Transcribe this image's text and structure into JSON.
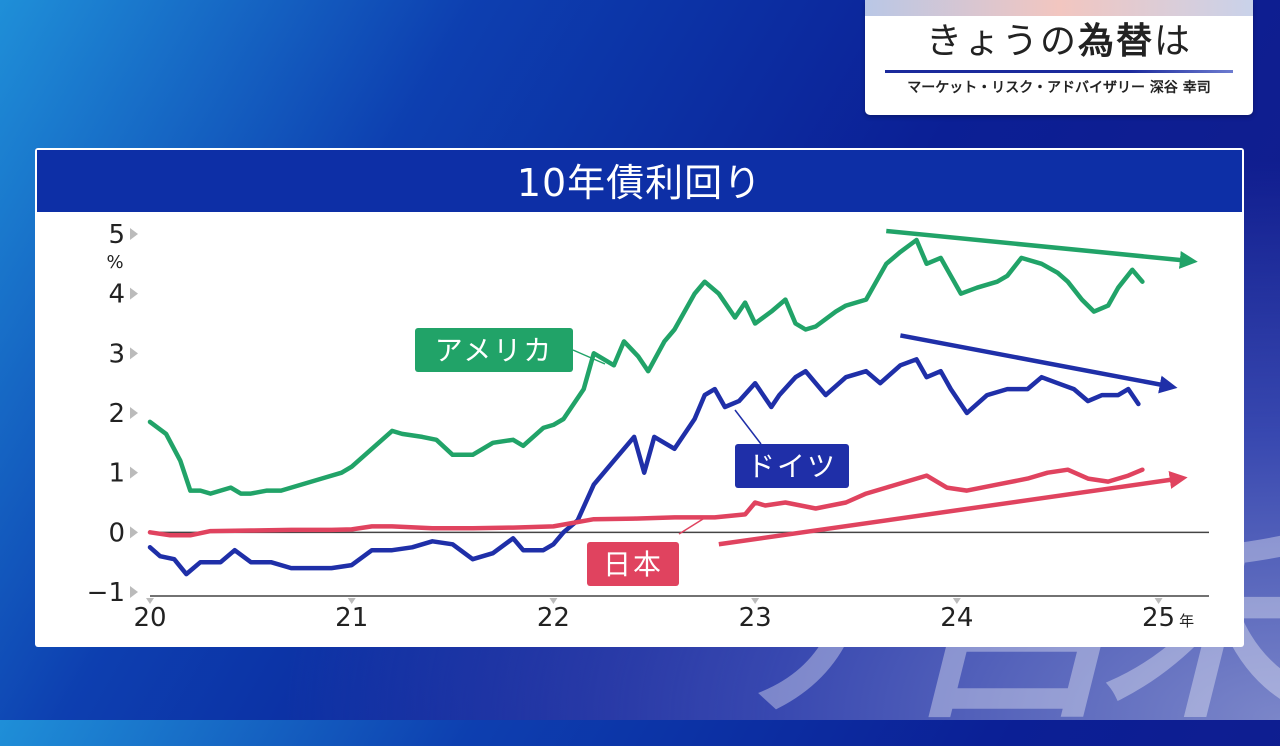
{
  "decor": {
    "background_text": "ナ呂禾"
  },
  "title_card": {
    "main_pre": "きょうの",
    "main_bold": "為替",
    "main_post": "は",
    "subtitle": "マーケット・リスク・アドバイザリー 深谷 幸司"
  },
  "chart_data": {
    "type": "line",
    "title": "10年債利回り",
    "ylabel": "%",
    "xlabel": "年",
    "ylim": [
      -1,
      5
    ],
    "xlim": [
      2020.0,
      2025.25
    ],
    "y_ticks": [
      "5",
      "4",
      "3",
      "2",
      "1",
      "0",
      "−1"
    ],
    "y_tick_values": [
      5,
      4,
      3,
      2,
      1,
      0,
      -1
    ],
    "x_ticks": [
      "20",
      "21",
      "22",
      "23",
      "24",
      "25"
    ],
    "x_tick_values": [
      2020,
      2021,
      2022,
      2023,
      2024,
      2025
    ],
    "grid": false,
    "zero_line": true,
    "series": [
      {
        "name": "アメリカ",
        "color": "#21a368",
        "x": [
          2020.0,
          2020.08,
          2020.15,
          2020.2,
          2020.25,
          2020.3,
          2020.4,
          2020.45,
          2020.5,
          2020.58,
          2020.65,
          2020.75,
          2020.85,
          2020.95,
          2021.0,
          2021.1,
          2021.2,
          2021.25,
          2021.35,
          2021.42,
          2021.5,
          2021.55,
          2021.6,
          2021.7,
          2021.8,
          2021.85,
          2021.95,
          2022.0,
          2022.05,
          2022.15,
          2022.2,
          2022.3,
          2022.35,
          2022.42,
          2022.47,
          2022.55,
          2022.6,
          2022.7,
          2022.75,
          2022.82,
          2022.9,
          2022.95,
          2023.0,
          2023.08,
          2023.15,
          2023.2,
          2023.25,
          2023.3,
          2023.4,
          2023.45,
          2023.55,
          2023.6,
          2023.65,
          2023.72,
          2023.8,
          2023.85,
          2023.92,
          2023.97,
          2024.02,
          2024.1,
          2024.2,
          2024.25,
          2024.32,
          2024.42,
          2024.5,
          2024.55,
          2024.62,
          2024.68,
          2024.75,
          2024.8,
          2024.87,
          2024.92
        ],
        "y": [
          1.85,
          1.65,
          1.2,
          0.7,
          0.7,
          0.65,
          0.75,
          0.65,
          0.65,
          0.7,
          0.7,
          0.8,
          0.9,
          1.0,
          1.1,
          1.4,
          1.7,
          1.65,
          1.6,
          1.55,
          1.3,
          1.3,
          1.3,
          1.5,
          1.55,
          1.45,
          1.75,
          1.8,
          1.9,
          2.4,
          3.0,
          2.8,
          3.2,
          2.95,
          2.7,
          3.2,
          3.4,
          4.0,
          4.2,
          4.0,
          3.6,
          3.85,
          3.5,
          3.7,
          3.9,
          3.5,
          3.4,
          3.45,
          3.7,
          3.8,
          3.9,
          4.2,
          4.5,
          4.7,
          4.9,
          4.5,
          4.6,
          4.3,
          4.0,
          4.1,
          4.2,
          4.3,
          4.6,
          4.5,
          4.35,
          4.2,
          3.9,
          3.7,
          3.8,
          4.1,
          4.4,
          4.2
        ]
      },
      {
        "name": "ドイツ",
        "color": "#1f2fa8",
        "x": [
          2020.0,
          2020.05,
          2020.12,
          2020.18,
          2020.25,
          2020.35,
          2020.42,
          2020.5,
          2020.6,
          2020.7,
          2020.8,
          2020.9,
          2021.0,
          2021.1,
          2021.2,
          2021.3,
          2021.4,
          2021.5,
          2021.6,
          2021.7,
          2021.8,
          2021.85,
          2021.95,
          2022.0,
          2022.05,
          2022.12,
          2022.2,
          2022.3,
          2022.4,
          2022.45,
          2022.5,
          2022.6,
          2022.7,
          2022.75,
          2022.8,
          2022.85,
          2022.92,
          2023.0,
          2023.08,
          2023.12,
          2023.2,
          2023.25,
          2023.35,
          2023.45,
          2023.55,
          2023.62,
          2023.72,
          2023.8,
          2023.85,
          2023.92,
          2023.97,
          2024.05,
          2024.15,
          2024.25,
          2024.35,
          2024.42,
          2024.5,
          2024.58,
          2024.65,
          2024.72,
          2024.8,
          2024.85,
          2024.9
        ],
        "y": [
          -0.25,
          -0.4,
          -0.45,
          -0.7,
          -0.5,
          -0.5,
          -0.3,
          -0.5,
          -0.5,
          -0.6,
          -0.6,
          -0.6,
          -0.55,
          -0.3,
          -0.3,
          -0.25,
          -0.15,
          -0.2,
          -0.45,
          -0.35,
          -0.1,
          -0.3,
          -0.3,
          -0.2,
          0.0,
          0.2,
          0.8,
          1.2,
          1.6,
          1.0,
          1.6,
          1.4,
          1.9,
          2.3,
          2.4,
          2.1,
          2.2,
          2.5,
          2.1,
          2.3,
          2.6,
          2.7,
          2.3,
          2.6,
          2.7,
          2.5,
          2.8,
          2.9,
          2.6,
          2.7,
          2.4,
          2.0,
          2.3,
          2.4,
          2.4,
          2.6,
          2.5,
          2.4,
          2.2,
          2.3,
          2.3,
          2.4,
          2.15
        ]
      },
      {
        "name": "日本",
        "color": "#e0435f",
        "x": [
          2020.0,
          2020.1,
          2020.2,
          2020.3,
          2020.5,
          2020.7,
          2020.9,
          2021.0,
          2021.1,
          2021.2,
          2021.4,
          2021.6,
          2021.8,
          2022.0,
          2022.2,
          2022.4,
          2022.6,
          2022.8,
          2022.95,
          2023.0,
          2023.05,
          2023.15,
          2023.3,
          2023.45,
          2023.55,
          2023.65,
          2023.75,
          2023.85,
          2023.95,
          2024.05,
          2024.2,
          2024.35,
          2024.45,
          2024.55,
          2024.65,
          2024.75,
          2024.85,
          2024.92
        ],
        "y": [
          0.0,
          -0.05,
          -0.05,
          0.02,
          0.03,
          0.04,
          0.04,
          0.05,
          0.1,
          0.1,
          0.07,
          0.07,
          0.08,
          0.1,
          0.22,
          0.23,
          0.25,
          0.25,
          0.3,
          0.5,
          0.45,
          0.5,
          0.4,
          0.5,
          0.65,
          0.75,
          0.85,
          0.95,
          0.75,
          0.7,
          0.8,
          0.9,
          1.0,
          1.05,
          0.9,
          0.85,
          0.95,
          1.05
        ]
      }
    ],
    "annotations": [
      {
        "text": "アメリカ",
        "series": "アメリカ"
      },
      {
        "text": "ドイツ",
        "series": "ドイツ"
      },
      {
        "text": "日本",
        "series": "日本"
      }
    ],
    "trend_arrows": [
      {
        "series": "アメリカ",
        "x": [
          2023.65,
          2025.15
        ],
        "y": [
          5.05,
          4.55
        ]
      },
      {
        "series": "ドイツ",
        "x": [
          2023.72,
          2025.05
        ],
        "y": [
          3.3,
          2.45
        ]
      },
      {
        "series": "日本",
        "x": [
          2022.82,
          2025.1
        ],
        "y": [
          -0.2,
          0.9
        ]
      }
    ]
  }
}
